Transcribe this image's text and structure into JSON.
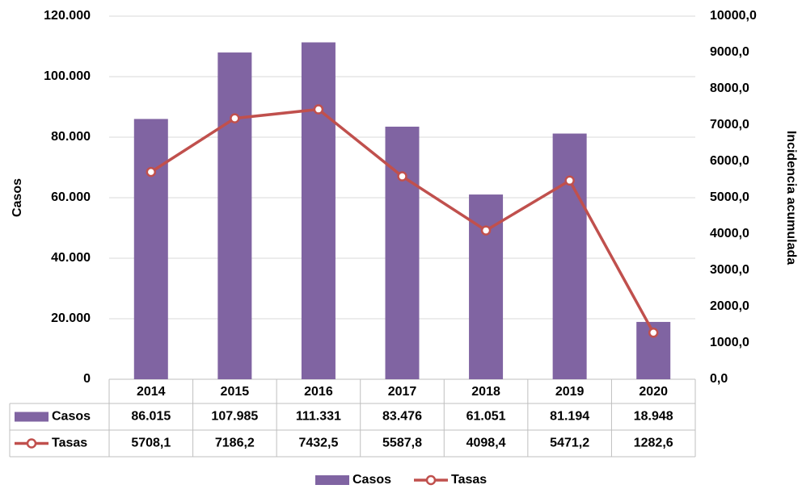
{
  "chart_data": {
    "type": "bar",
    "categories": [
      "2014",
      "2015",
      "2016",
      "2017",
      "2018",
      "2019",
      "2020"
    ],
    "series": [
      {
        "name": "Casos",
        "color": "#8064a2",
        "values": [
          86015,
          107985,
          111331,
          83476,
          61051,
          81194,
          18948
        ],
        "value_labels": [
          "86.015",
          "107.985",
          "111.331",
          "83.476",
          "61.051",
          "81.194",
          "18.948"
        ]
      },
      {
        "name": "Tasas",
        "type": "line",
        "axis": "y2",
        "color": "#c0504d",
        "values": [
          5708.1,
          7186.2,
          7432.5,
          5587.8,
          4098.4,
          5471.2,
          1282.6
        ],
        "value_labels": [
          "5708,1",
          "7186,2",
          "7432,5",
          "5587,8",
          "4098,4",
          "5471,2",
          "1282,6"
        ]
      }
    ],
    "ylabel": "Casos",
    "y2label": "Incidencia acumulada",
    "ylim": [
      0,
      120000
    ],
    "yticks": [
      0,
      {
        "value": 20000,
        "label": "20.000"
      },
      {
        "value": 40000,
        "label": "40.000"
      },
      {
        "value": 60000,
        "label": "60.000"
      },
      {
        "value": 80000,
        "label": "80.000"
      },
      {
        "value": 100000,
        "label": "100.000"
      },
      {
        "value": 120000,
        "label": "120.000"
      }
    ],
    "y2lim": [
      0,
      10000
    ],
    "y2ticks": [
      {
        "value": 0,
        "label": "0,0"
      },
      {
        "value": 1000,
        "label": "1000,0"
      },
      {
        "value": 2000,
        "label": "2000,0"
      },
      {
        "value": 3000,
        "label": "3000,0"
      },
      {
        "value": 4000,
        "label": "4000,0"
      },
      {
        "value": 5000,
        "label": "5000,0"
      },
      {
        "value": 6000,
        "label": "6000,0"
      },
      {
        "value": 7000,
        "label": "7000,0"
      },
      {
        "value": 8000,
        "label": "8000,0"
      },
      {
        "value": 9000,
        "label": "9000,0"
      },
      {
        "value": 10000,
        "label": "10000,0"
      }
    ],
    "grid": true,
    "legend": "bottom"
  }
}
